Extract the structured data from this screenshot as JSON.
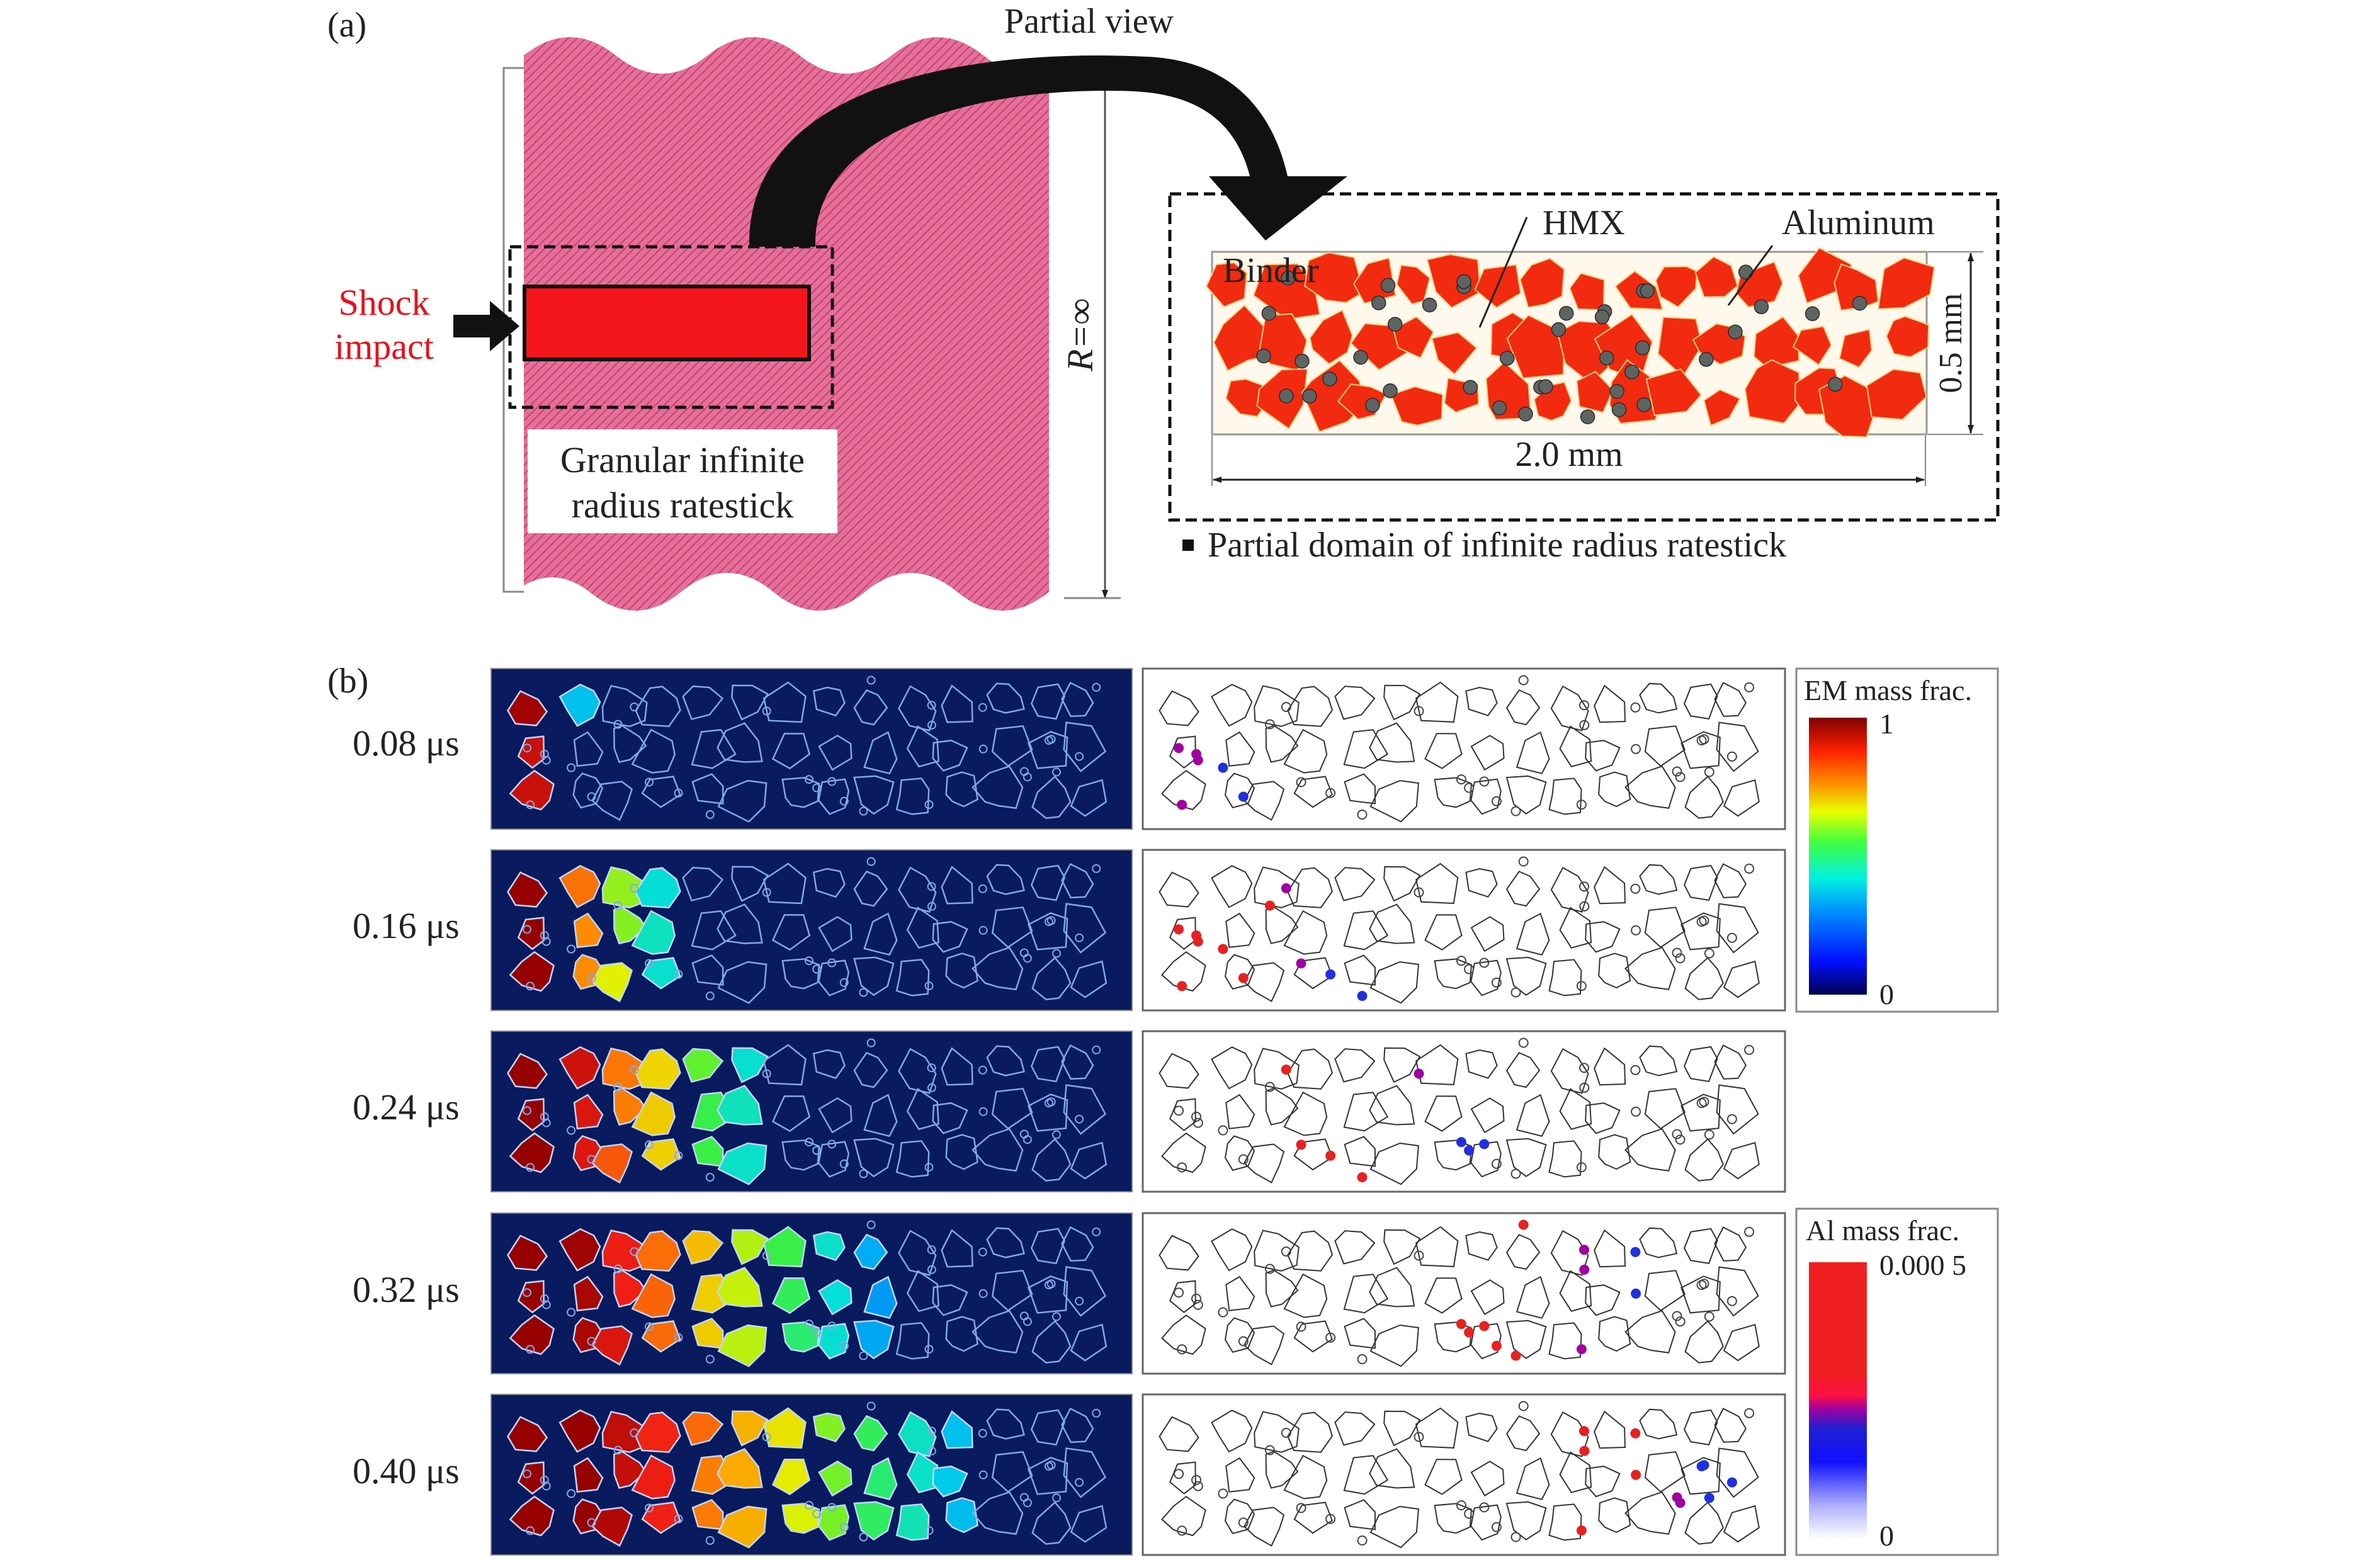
{
  "panel_a": {
    "label": "(a)",
    "partial_view": "Partial view",
    "shock_line1": "Shock",
    "shock_line2": "impact",
    "granular_line1": "Granular infinite",
    "granular_line2": "radius ratestick",
    "r_label": "R=∞",
    "binder": "Binder",
    "hmx": "HMX",
    "aluminum": "Aluminum",
    "height_dim": "0.5 mm",
    "width_dim": "2.0 mm",
    "caption": "Partial domain of infinite radius ratestick"
  },
  "panel_b": {
    "label": "(b)",
    "times": [
      "0.08 μs",
      "0.16 μs",
      "0.24 μs",
      "0.32 μs",
      "0.40 μs"
    ],
    "em_front_fraction": [
      0.12,
      0.28,
      0.45,
      0.62,
      0.8
    ],
    "al_front_fraction": [
      0.18,
      0.35,
      0.55,
      0.78,
      0.95
    ],
    "em_legend": {
      "title": "EM mass frac.",
      "max": "1",
      "min": "0"
    },
    "al_legend": {
      "title": "Al mass frac.",
      "max": "0.000 5",
      "min": "0"
    }
  },
  "colors": {
    "shock": "#e8101a",
    "hmx": "#f02b10",
    "pink": "#e0608a",
    "em_bg": "#0a1a5e"
  }
}
